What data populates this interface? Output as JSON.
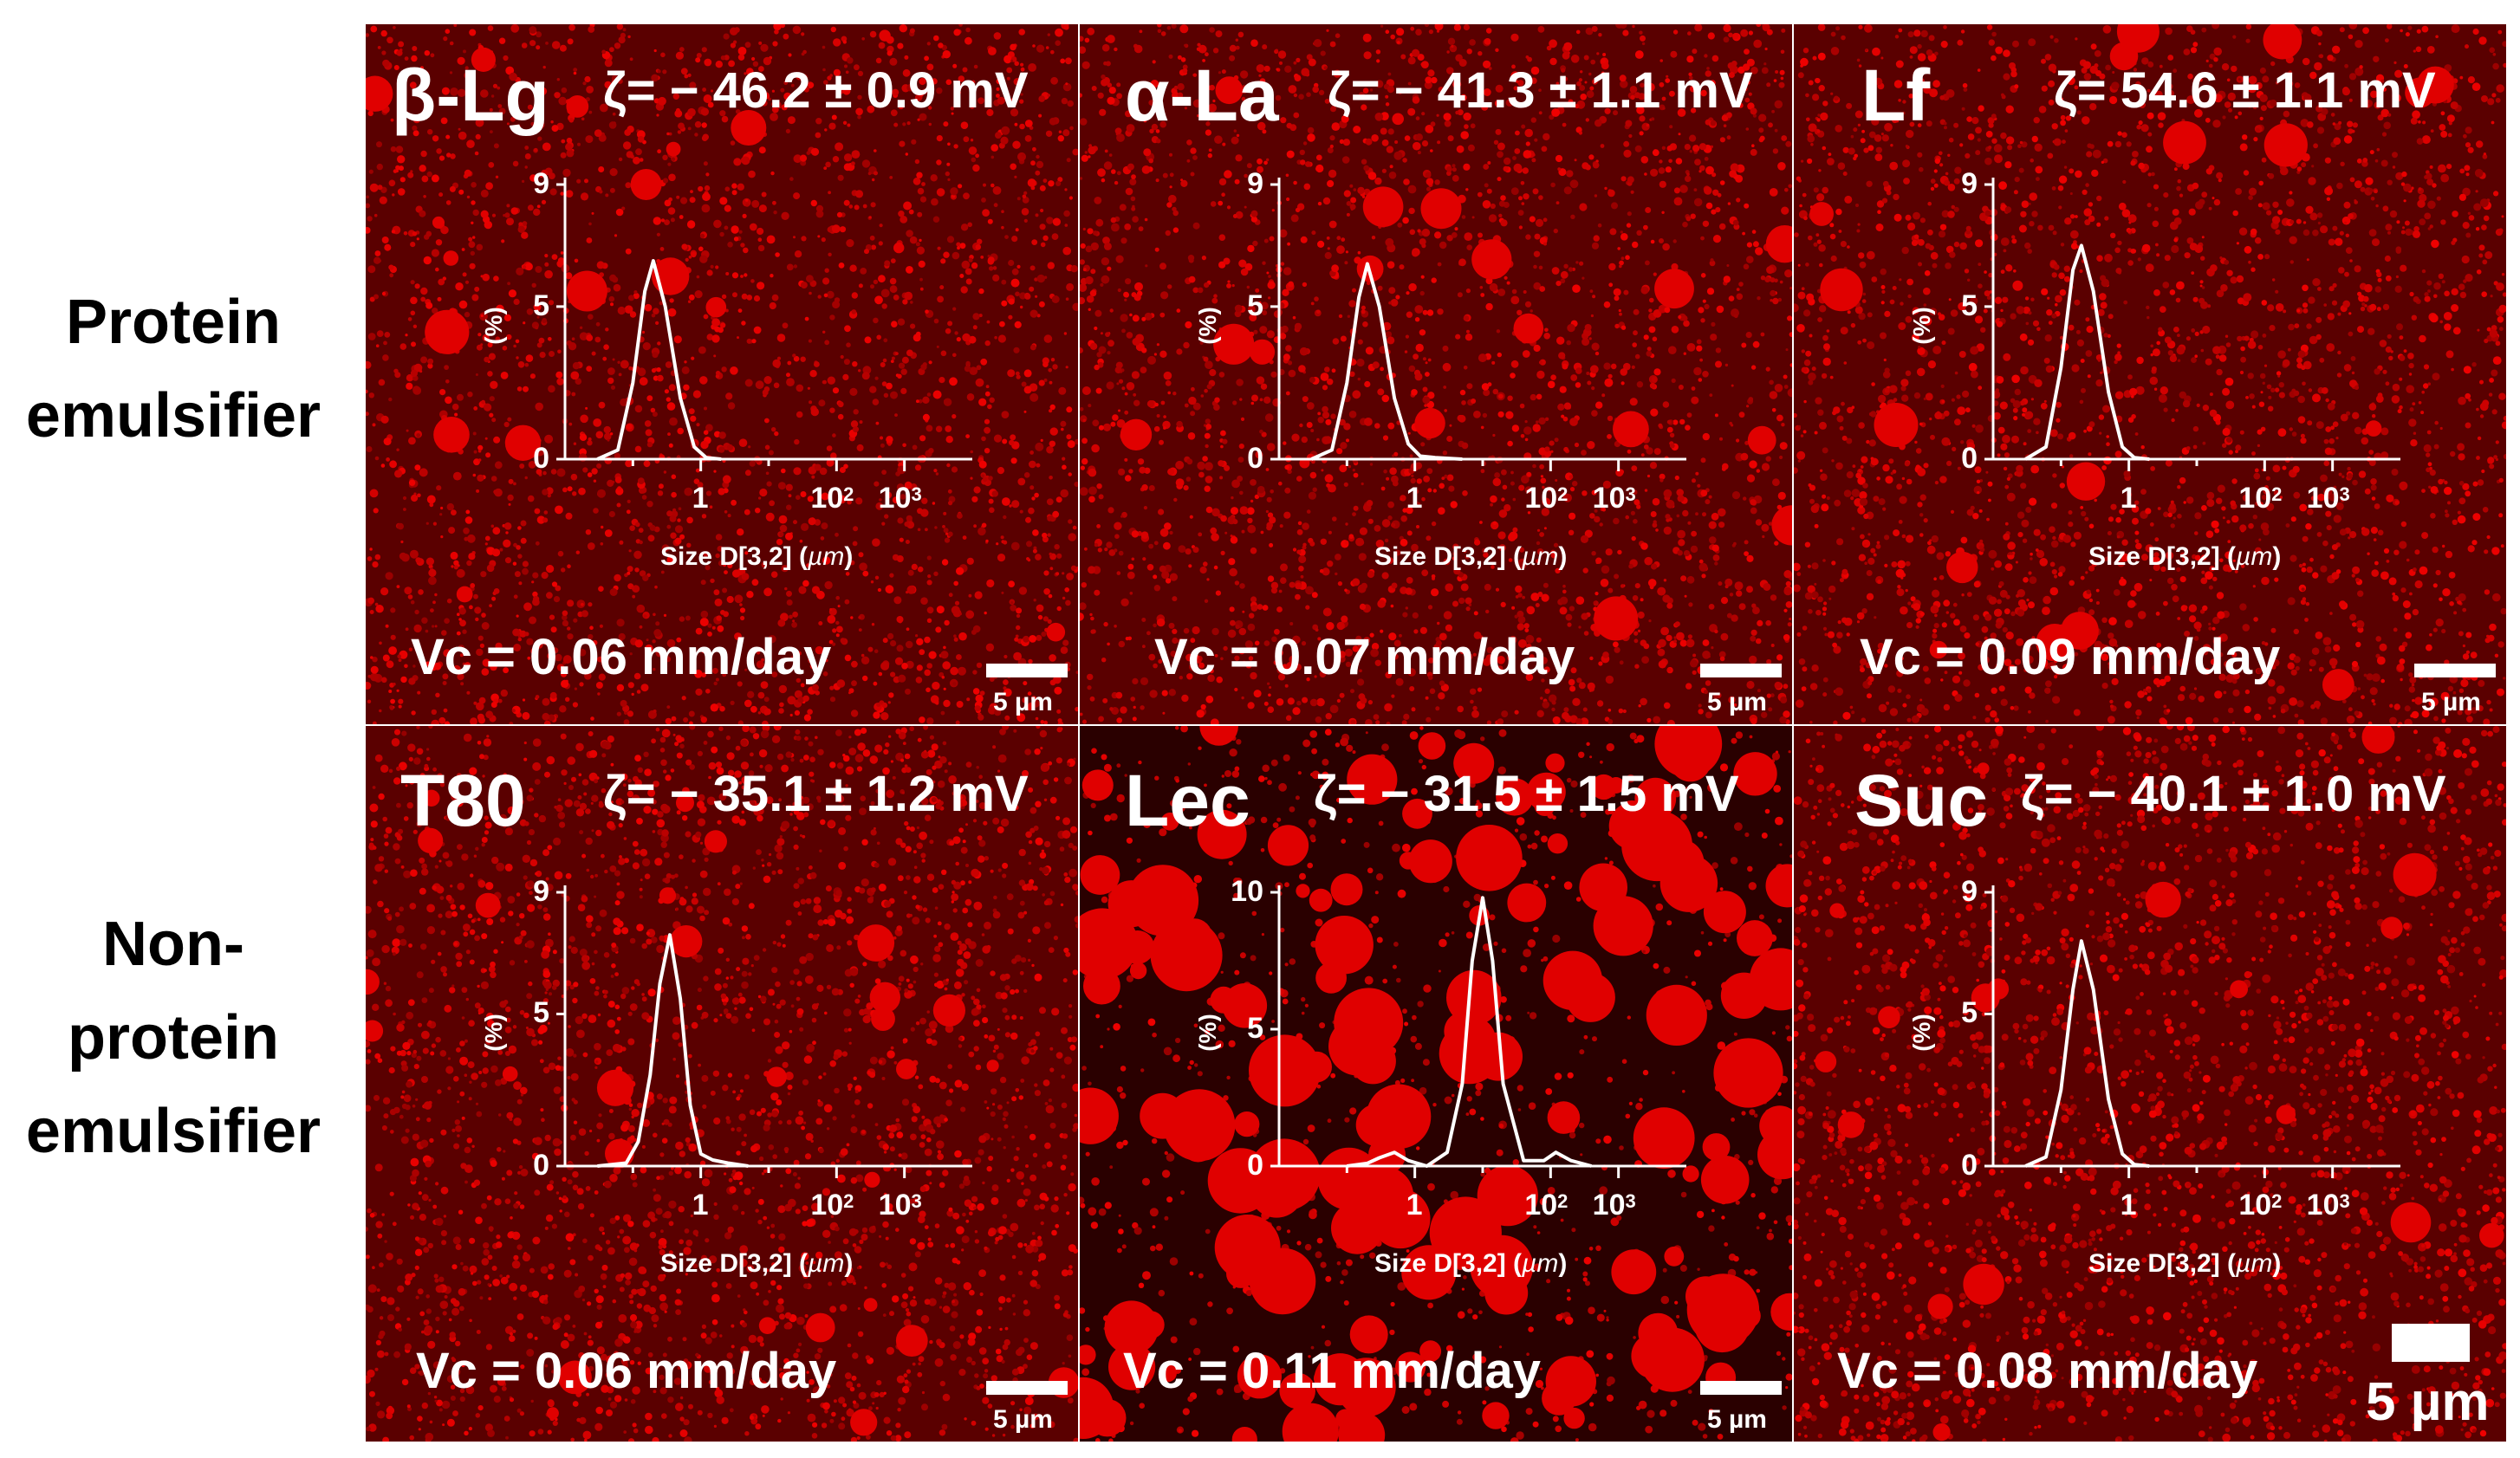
{
  "row_labels": {
    "protein": [
      "Protein",
      "emulsifier"
    ],
    "non_protein": [
      "Non-",
      "protein",
      "emulsifier"
    ]
  },
  "axis": {
    "xlabel_prefix": "Size D[3,2] (",
    "xlabel_unit": "µm",
    "xlabel_suffix": ")",
    "ylabel": "(%)",
    "x_tick_1": "1",
    "x_tick_base": "10",
    "x_tick_exp2": "2",
    "x_tick_exp3": "3"
  },
  "colors": {
    "micrograph_red": "#e00000",
    "background_dark": "#3a0000",
    "curve": "#ffffff"
  },
  "panels": [
    {
      "name": "β-Lg",
      "zeta": "ζ= − 46.2 ± 0.9 mV",
      "vc": "Vc = 0.06 mm/day",
      "scale_bar": "5 µm",
      "y_ticks": [
        "9",
        "5",
        "0"
      ]
    },
    {
      "name": "α-La",
      "zeta": "ζ= − 41.3 ± 1.1 mV",
      "vc": "Vc = 0.07 mm/day",
      "scale_bar": "5 µm",
      "y_ticks": [
        "9",
        "5",
        "0"
      ]
    },
    {
      "name": "Lf",
      "zeta": "ζ= 54.6 ± 1.1 mV",
      "vc": "Vc = 0.09 mm/day",
      "scale_bar": "5 µm",
      "y_ticks": [
        "9",
        "5",
        "0"
      ]
    },
    {
      "name": "T80",
      "zeta": "ζ= − 35.1 ± 1.2 mV",
      "vc": "Vc = 0.06 mm/day",
      "scale_bar": "5 µm",
      "y_ticks": [
        "9",
        "5",
        "0"
      ]
    },
    {
      "name": "Lec",
      "zeta": "ζ= − 31.5 ± 1.5 mV",
      "vc": "Vc = 0.11 mm/day",
      "scale_bar": "5 µm",
      "y_ticks": [
        "10",
        "5",
        "0"
      ]
    },
    {
      "name": "Suc",
      "zeta": "ζ= − 40.1 ± 1.0 mV",
      "vc": "Vc = 0.08 mm/day",
      "scale_bar": "5 µm",
      "y_ticks": [
        "9",
        "5",
        "0"
      ]
    }
  ],
  "chart_data": [
    {
      "type": "line",
      "panel": "β-Lg",
      "xscale": "log",
      "xlim": [
        0.01,
        10000
      ],
      "ylim": [
        0,
        9
      ],
      "xlabel": "Size D[3,2] (µm)",
      "ylabel": "(%)",
      "series": [
        {
          "name": "β-Lg",
          "x": [
            0.03,
            0.06,
            0.1,
            0.15,
            0.2,
            0.3,
            0.5,
            0.8,
            1.2,
            2
          ],
          "y": [
            0,
            0.3,
            2.5,
            5.5,
            6.5,
            5.0,
            2.0,
            0.4,
            0.05,
            0
          ]
        }
      ]
    },
    {
      "type": "line",
      "panel": "α-La",
      "xscale": "log",
      "xlim": [
        0.01,
        10000
      ],
      "ylim": [
        0,
        9
      ],
      "xlabel": "Size D[3,2] (µm)",
      "ylabel": "(%)",
      "series": [
        {
          "name": "α-La",
          "x": [
            0.03,
            0.06,
            0.1,
            0.15,
            0.2,
            0.3,
            0.5,
            0.8,
            1.2,
            2,
            5
          ],
          "y": [
            0,
            0.3,
            2.5,
            5.3,
            6.4,
            5.0,
            2.0,
            0.5,
            0.1,
            0.05,
            0
          ]
        }
      ]
    },
    {
      "type": "line",
      "panel": "Lf",
      "xscale": "log",
      "xlim": [
        0.01,
        10000
      ],
      "ylim": [
        0,
        9
      ],
      "xlabel": "Size D[3,2] (µm)",
      "ylabel": "(%)",
      "series": [
        {
          "name": "Lf",
          "x": [
            0.03,
            0.06,
            0.1,
            0.15,
            0.2,
            0.3,
            0.5,
            0.8,
            1.2,
            2
          ],
          "y": [
            0,
            0.4,
            3.0,
            6.2,
            7.0,
            5.5,
            2.2,
            0.4,
            0.05,
            0
          ]
        }
      ]
    },
    {
      "type": "line",
      "panel": "T80",
      "xscale": "log",
      "xlim": [
        0.01,
        10000
      ],
      "ylim": [
        0,
        9
      ],
      "xlabel": "Size D[3,2] (µm)",
      "ylabel": "(%)",
      "series": [
        {
          "name": "T80",
          "x": [
            0.03,
            0.08,
            0.12,
            0.18,
            0.25,
            0.35,
            0.5,
            0.7,
            1,
            1.5,
            2.5,
            5
          ],
          "y": [
            0,
            0.1,
            0.8,
            3.0,
            6.0,
            7.6,
            5.5,
            2.0,
            0.4,
            0.2,
            0.1,
            0
          ]
        }
      ]
    },
    {
      "type": "line",
      "panel": "Lec",
      "xscale": "log",
      "xlim": [
        0.01,
        10000
      ],
      "ylim": [
        0,
        10
      ],
      "xlabel": "Size D[3,2] (µm)",
      "ylabel": "(%)",
      "series": [
        {
          "name": "Lec",
          "x": [
            0.1,
            0.2,
            0.3,
            0.5,
            0.8,
            1.5,
            3,
            5,
            7,
            10,
            14,
            20,
            40,
            80,
            120,
            200,
            400
          ],
          "y": [
            0,
            0.1,
            0.3,
            0.5,
            0.2,
            0,
            0.5,
            3.0,
            7.5,
            9.8,
            7.5,
            3.0,
            0.2,
            0.2,
            0.5,
            0.2,
            0
          ]
        }
      ]
    },
    {
      "type": "line",
      "panel": "Suc",
      "xscale": "log",
      "xlim": [
        0.01,
        10000
      ],
      "ylim": [
        0,
        9
      ],
      "xlabel": "Size D[3,2] (µm)",
      "ylabel": "(%)",
      "series": [
        {
          "name": "Suc",
          "x": [
            0.03,
            0.06,
            0.1,
            0.15,
            0.2,
            0.3,
            0.5,
            0.8,
            1.2,
            2
          ],
          "y": [
            0,
            0.3,
            2.5,
            5.8,
            7.4,
            5.8,
            2.2,
            0.4,
            0.05,
            0
          ]
        }
      ]
    }
  ]
}
